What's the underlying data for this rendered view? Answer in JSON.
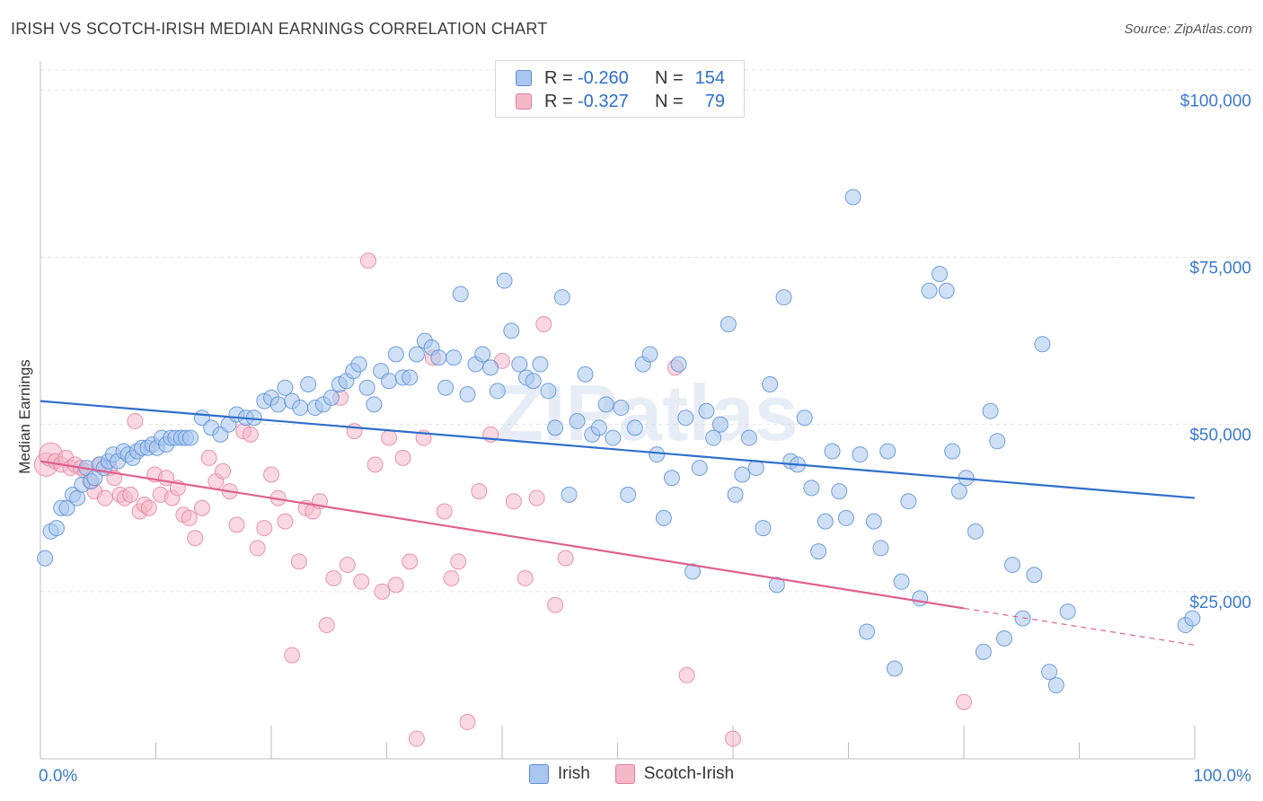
{
  "title": "IRISH VS SCOTCH-IRISH MEDIAN EARNINGS CORRELATION CHART",
  "source": "Source: ZipAtlas.com",
  "watermark": "ZIPatlas",
  "legend_top": [
    {
      "r_label": "R =",
      "r_value": "-0.260",
      "n_label": "N =",
      "n_value": "154"
    },
    {
      "r_label": "R =",
      "r_value": "-0.327",
      "n_label": "N =",
      "n_value": "79"
    }
  ],
  "colors": {
    "irish_fill": "#a8c6ef",
    "irish_stroke": "#5b8fd6",
    "irish_line": "#2e6fcb",
    "scotch_fill": "#f5b8c9",
    "scotch_stroke": "#e27d9c",
    "scotch_line": "#e0608c",
    "axis_label": "#3a7ad1"
  },
  "chart_data": {
    "type": "scatter",
    "title": "IRISH VS SCOTCH-IRISH MEDIAN EARNINGS CORRELATION CHART",
    "xlabel": "",
    "ylabel": "Median Earnings",
    "xlim": [
      0,
      100
    ],
    "ylim": [
      0,
      103000
    ],
    "x_tick_labels": [
      "0.0%",
      "100.0%"
    ],
    "y_ticks": [
      25000,
      50000,
      75000,
      100000
    ],
    "y_tick_labels": [
      "$25,000",
      "$50,000",
      "$75,000",
      "$100,000"
    ],
    "grid": "horizontal dashed",
    "legend_position": "top-center and bottom",
    "series": [
      {
        "name": "Irish",
        "trend": {
          "x0": 0,
          "y0": 53500,
          "x1": 100,
          "y1": 39000
        },
        "points": [
          [
            0.4,
            30000
          ],
          [
            0.9,
            34000
          ],
          [
            1.4,
            34500
          ],
          [
            1.8,
            37500
          ],
          [
            2.3,
            37500
          ],
          [
            2.8,
            39500
          ],
          [
            3.2,
            39000
          ],
          [
            3.6,
            41000
          ],
          [
            4.0,
            43500
          ],
          [
            4.4,
            41500
          ],
          [
            4.7,
            42000
          ],
          [
            5.1,
            44000
          ],
          [
            5.5,
            43500
          ],
          [
            5.9,
            44500
          ],
          [
            6.3,
            45500
          ],
          [
            6.7,
            44500
          ],
          [
            7.2,
            46000
          ],
          [
            7.6,
            45500
          ],
          [
            8.0,
            45000
          ],
          [
            8.4,
            46000
          ],
          [
            8.8,
            46500
          ],
          [
            9.3,
            46500
          ],
          [
            9.7,
            47000
          ],
          [
            10.1,
            46500
          ],
          [
            10.5,
            48000
          ],
          [
            10.9,
            47000
          ],
          [
            11.3,
            48000
          ],
          [
            11.7,
            48000
          ],
          [
            12.2,
            48000
          ],
          [
            12.6,
            48000
          ],
          [
            13.0,
            48000
          ],
          [
            14.0,
            51000
          ],
          [
            14.8,
            49500
          ],
          [
            15.6,
            48500
          ],
          [
            16.3,
            50000
          ],
          [
            17.0,
            51500
          ],
          [
            17.8,
            51000
          ],
          [
            18.5,
            51000
          ],
          [
            19.4,
            53500
          ],
          [
            20.0,
            54000
          ],
          [
            20.6,
            53000
          ],
          [
            21.2,
            55500
          ],
          [
            21.8,
            53500
          ],
          [
            22.5,
            52500
          ],
          [
            23.2,
            56000
          ],
          [
            23.8,
            52500
          ],
          [
            24.5,
            53000
          ],
          [
            25.2,
            54000
          ],
          [
            25.9,
            56000
          ],
          [
            26.5,
            56500
          ],
          [
            27.1,
            58000
          ],
          [
            27.6,
            59000
          ],
          [
            28.3,
            55500
          ],
          [
            28.9,
            53000
          ],
          [
            29.5,
            58000
          ],
          [
            30.2,
            56500
          ],
          [
            30.8,
            60500
          ],
          [
            31.4,
            57000
          ],
          [
            32.0,
            57000
          ],
          [
            32.6,
            60500
          ],
          [
            33.3,
            62500
          ],
          [
            33.9,
            61500
          ],
          [
            34.5,
            60000
          ],
          [
            35.1,
            55500
          ],
          [
            35.8,
            60000
          ],
          [
            36.4,
            69500
          ],
          [
            37.0,
            54500
          ],
          [
            37.7,
            59000
          ],
          [
            38.3,
            60500
          ],
          [
            39.0,
            58500
          ],
          [
            39.6,
            55000
          ],
          [
            40.2,
            71500
          ],
          [
            40.8,
            64000
          ],
          [
            41.5,
            59000
          ],
          [
            42.1,
            57000
          ],
          [
            42.7,
            56500
          ],
          [
            43.3,
            59000
          ],
          [
            44.0,
            55000
          ],
          [
            44.6,
            49500
          ],
          [
            45.2,
            69000
          ],
          [
            45.8,
            39500
          ],
          [
            46.5,
            50500
          ],
          [
            47.2,
            57500
          ],
          [
            47.8,
            48500
          ],
          [
            48.4,
            49500
          ],
          [
            49.0,
            53000
          ],
          [
            49.6,
            48000
          ],
          [
            50.3,
            52500
          ],
          [
            50.9,
            39500
          ],
          [
            51.5,
            49500
          ],
          [
            52.2,
            59000
          ],
          [
            52.8,
            60500
          ],
          [
            53.4,
            45500
          ],
          [
            54.0,
            36000
          ],
          [
            54.7,
            42000
          ],
          [
            55.3,
            59000
          ],
          [
            55.9,
            51000
          ],
          [
            56.5,
            28000
          ],
          [
            57.1,
            43500
          ],
          [
            57.7,
            52000
          ],
          [
            58.3,
            48000
          ],
          [
            58.9,
            50000
          ],
          [
            59.6,
            65000
          ],
          [
            60.2,
            39500
          ],
          [
            60.8,
            42500
          ],
          [
            61.4,
            48000
          ],
          [
            62.0,
            43500
          ],
          [
            62.6,
            34500
          ],
          [
            63.2,
            56000
          ],
          [
            63.8,
            26000
          ],
          [
            64.4,
            69000
          ],
          [
            65.0,
            44500
          ],
          [
            65.6,
            44000
          ],
          [
            66.2,
            51000
          ],
          [
            66.8,
            40500
          ],
          [
            67.4,
            31000
          ],
          [
            68.0,
            35500
          ],
          [
            68.6,
            46000
          ],
          [
            69.2,
            40000
          ],
          [
            69.8,
            36000
          ],
          [
            70.4,
            84000
          ],
          [
            71.0,
            45500
          ],
          [
            71.6,
            19000
          ],
          [
            72.2,
            35500
          ],
          [
            72.8,
            31500
          ],
          [
            73.4,
            46000
          ],
          [
            74.0,
            13500
          ],
          [
            74.6,
            26500
          ],
          [
            75.2,
            38500
          ],
          [
            76.2,
            24000
          ],
          [
            77.0,
            70000
          ],
          [
            77.9,
            72500
          ],
          [
            78.5,
            70000
          ],
          [
            79.0,
            46000
          ],
          [
            79.6,
            40000
          ],
          [
            80.2,
            42000
          ],
          [
            81.0,
            34000
          ],
          [
            81.7,
            16000
          ],
          [
            82.3,
            52000
          ],
          [
            82.9,
            47500
          ],
          [
            83.5,
            18000
          ],
          [
            84.2,
            29000
          ],
          [
            85.1,
            21000
          ],
          [
            86.1,
            27500
          ],
          [
            86.8,
            62000
          ],
          [
            87.4,
            13000
          ],
          [
            88.0,
            11000
          ],
          [
            89.0,
            22000
          ],
          [
            99.2,
            20000
          ],
          [
            99.8,
            21000
          ]
        ]
      },
      {
        "name": "Scotch-Irish",
        "trend": {
          "x0": 0,
          "y0": 44500,
          "x1": 80,
          "y1": 22500,
          "dash_x1": 100,
          "dash_y1": 17000
        },
        "points": [
          [
            0.5,
            44000
          ],
          [
            0.9,
            45500
          ],
          [
            1.3,
            44500
          ],
          [
            1.8,
            44000
          ],
          [
            2.2,
            45000
          ],
          [
            2.6,
            43500
          ],
          [
            3.0,
            44000
          ],
          [
            3.5,
            43500
          ],
          [
            3.9,
            43000
          ],
          [
            4.3,
            41500
          ],
          [
            4.7,
            40000
          ],
          [
            5.2,
            44000
          ],
          [
            5.6,
            39000
          ],
          [
            6.0,
            43500
          ],
          [
            6.4,
            42000
          ],
          [
            6.9,
            39500
          ],
          [
            7.3,
            39000
          ],
          [
            7.8,
            39500
          ],
          [
            8.2,
            50500
          ],
          [
            8.6,
            37000
          ],
          [
            9.0,
            38000
          ],
          [
            9.4,
            37500
          ],
          [
            9.9,
            42500
          ],
          [
            10.4,
            39500
          ],
          [
            10.9,
            42000
          ],
          [
            11.4,
            39000
          ],
          [
            11.9,
            40500
          ],
          [
            12.4,
            36500
          ],
          [
            12.9,
            36000
          ],
          [
            13.4,
            33000
          ],
          [
            14.0,
            37500
          ],
          [
            14.6,
            45000
          ],
          [
            15.2,
            41500
          ],
          [
            15.8,
            43000
          ],
          [
            16.4,
            40000
          ],
          [
            17.0,
            35000
          ],
          [
            17.6,
            49000
          ],
          [
            18.2,
            48500
          ],
          [
            18.8,
            31500
          ],
          [
            19.4,
            34500
          ],
          [
            20.0,
            42500
          ],
          [
            20.6,
            39000
          ],
          [
            21.2,
            35500
          ],
          [
            21.8,
            15500
          ],
          [
            22.4,
            29500
          ],
          [
            23.0,
            37500
          ],
          [
            23.6,
            37000
          ],
          [
            24.2,
            38500
          ],
          [
            24.8,
            20000
          ],
          [
            25.4,
            27000
          ],
          [
            26.0,
            54000
          ],
          [
            26.6,
            29000
          ],
          [
            27.2,
            49000
          ],
          [
            27.8,
            26500
          ],
          [
            28.4,
            74500
          ],
          [
            29.0,
            44000
          ],
          [
            29.6,
            25000
          ],
          [
            30.2,
            48000
          ],
          [
            30.8,
            26000
          ],
          [
            31.4,
            45000
          ],
          [
            32.0,
            29500
          ],
          [
            32.6,
            3000
          ],
          [
            33.2,
            48000
          ],
          [
            34.0,
            60000
          ],
          [
            35.0,
            37000
          ],
          [
            35.6,
            27000
          ],
          [
            36.2,
            29500
          ],
          [
            37.0,
            5500
          ],
          [
            38.0,
            40000
          ],
          [
            39.0,
            48500
          ],
          [
            40.0,
            59500
          ],
          [
            41.0,
            38500
          ],
          [
            42.0,
            27000
          ],
          [
            43.0,
            39000
          ],
          [
            43.6,
            65000
          ],
          [
            44.6,
            23000
          ],
          [
            45.5,
            30000
          ],
          [
            55.0,
            58500
          ],
          [
            56.0,
            12500
          ],
          [
            60.0,
            3000
          ],
          [
            80.0,
            8500
          ]
        ]
      }
    ]
  },
  "legend_bottom": [
    {
      "label": "Irish"
    },
    {
      "label": "Scotch-Irish"
    }
  ]
}
